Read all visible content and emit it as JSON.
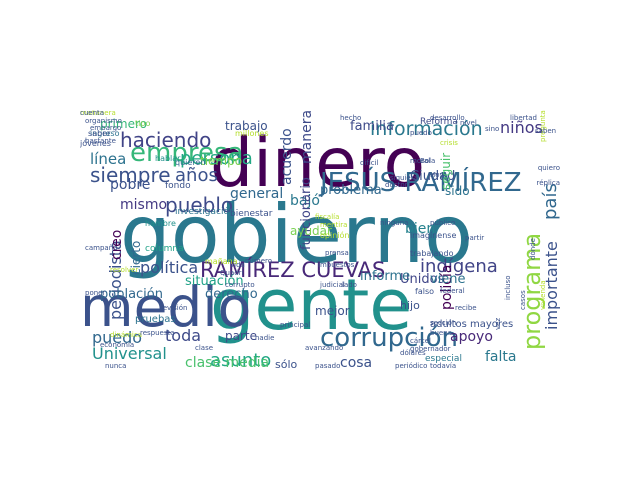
{
  "word_cloud": {
    "words": [
      {
        "text": "gobierno",
        "color": "#2a788e"
      },
      {
        "text": "gente",
        "color": "#21918c"
      },
      {
        "text": "dinero",
        "color": "#440154"
      },
      {
        "text": "medio",
        "color": "#3b528b"
      },
      {
        "text": "corrupción",
        "color": "#31688e"
      },
      {
        "text": "JESÚS RAMÍREZ",
        "color": "#31688e"
      },
      {
        "text": "empresa",
        "color": "#35b779"
      },
      {
        "text": "RAMÍREZ CUEVAS",
        "color": "#482878"
      },
      {
        "text": "información",
        "color": "#2a788e"
      },
      {
        "text": "pueblo",
        "color": "#3e4a89"
      },
      {
        "text": "programa",
        "color": "#90d743"
      },
      {
        "text": "haciendo",
        "color": "#414487"
      },
      {
        "text": "persona",
        "color": "#22a884"
      },
      {
        "text": "indígena",
        "color": "#414487"
      },
      {
        "text": "siempre",
        "color": "#3b528b"
      },
      {
        "text": "años",
        "color": "#3b528b"
      },
      {
        "text": "línea",
        "color": "#2c728e"
      },
      {
        "text": "periodista",
        "color": "#3b528b"
      },
      {
        "text": "política",
        "color": "#3b528b"
      },
      {
        "text": "toda",
        "color": "#3e4a89"
      },
      {
        "text": "asunto",
        "color": "#22a884"
      },
      {
        "text": "puedo",
        "color": "#31688e"
      },
      {
        "text": "Universal",
        "color": "#21918c"
      },
      {
        "text": "policía",
        "color": "#440154"
      },
      {
        "text": "país",
        "color": "#31688e"
      },
      {
        "text": "importante",
        "color": "#3b528b"
      },
      {
        "text": "falta",
        "color": "#2a788e"
      },
      {
        "text": "apoyo",
        "color": "#482878"
      },
      {
        "text": "niños",
        "color": "#443983"
      },
      {
        "text": "bien",
        "color": "#26828e"
      },
      {
        "text": "general",
        "color": "#31688e"
      },
      {
        "text": "bajó",
        "color": "#2a788e"
      },
      {
        "text": "problema",
        "color": "#31688e"
      },
      {
        "text": "Unidos",
        "color": "#404688"
      },
      {
        "text": "viene",
        "color": "#2c728e"
      },
      {
        "text": "situación",
        "color": "#1fa187"
      },
      {
        "text": "población",
        "color": "#31688e"
      },
      {
        "text": "derecho",
        "color": "#31688e"
      },
      {
        "text": "clase media",
        "color": "#4ac16d"
      },
      {
        "text": "cosa",
        "color": "#3b528b"
      },
      {
        "text": "parte",
        "color": "#3e4a89"
      },
      {
        "text": "pobre",
        "color": "#3b528b"
      },
      {
        "text": "mismo",
        "color": "#443983"
      },
      {
        "text": "creo",
        "color": "#440154"
      },
      {
        "text": "cierto",
        "color": "#31688e"
      },
      {
        "text": "manera",
        "color": "#3e4a89"
      },
      {
        "text": "acuerdo",
        "color": "#3b528b"
      },
      {
        "text": "funcionario",
        "color": "#404688"
      },
      {
        "text": "familia",
        "color": "#3e4a89"
      },
      {
        "text": "trabajo",
        "color": "#3b528b"
      },
      {
        "text": "primero",
        "color": "#35b779"
      },
      {
        "text": "tiempo",
        "color": "#7ad151"
      },
      {
        "text": "informe",
        "color": "#2c728e"
      },
      {
        "text": "Ciudad",
        "color": "#3b528b"
      },
      {
        "text": "ayudar",
        "color": "#7ad151"
      },
      {
        "text": "sido",
        "color": "#2c728e"
      },
      {
        "text": "seguir",
        "color": "#4ac16d"
      },
      {
        "text": "mejor",
        "color": "#3b528b"
      },
      {
        "text": "sólo",
        "color": "#3b528b"
      },
      {
        "text": "hijo",
        "color": "#3b528b"
      },
      {
        "text": "adultos mayores",
        "color": "#3b528b"
      },
      {
        "text": "especial",
        "color": "#2a788e"
      },
      {
        "text": "pruebas",
        "color": "#2c728e"
      },
      {
        "text": "Reforma",
        "color": "#3e4a89"
      },
      {
        "text": "fondo",
        "color": "#3b528b"
      },
      {
        "text": "investigación",
        "color": "#2c728e"
      },
      {
        "text": "bienestar",
        "color": "#3b528b"
      },
      {
        "text": "columna",
        "color": "#1fa187"
      },
      {
        "text": "ingreso",
        "color": "#2c728e"
      },
      {
        "text": "tipo",
        "color": "#7ad151"
      },
      {
        "text": "millones",
        "color": "#b5de2b"
      },
      {
        "text": "mañana",
        "color": "#b5de2b"
      },
      {
        "text": "jóvenes",
        "color": "#3b528b"
      },
      {
        "text": "saber",
        "color": "#3b528b"
      },
      {
        "text": "hambre",
        "color": "#21918c"
      },
      {
        "text": "hablar",
        "color": "#21918c"
      },
      {
        "text": "quieren",
        "color": "#31688e"
      },
      {
        "text": "número",
        "color": "#3b528b"
      },
      {
        "text": "prensa",
        "color": "#3b528b"
      },
      {
        "text": "impuestos",
        "color": "#3b528b"
      },
      {
        "text": "opinión",
        "color": "#b5de2b"
      },
      {
        "text": "mentira",
        "color": "#b5de2b"
      },
      {
        "text": "fiscalía",
        "color": "#b5de2b"
      },
      {
        "text": "judicial",
        "color": "#3b528b"
      },
      {
        "text": "lado",
        "color": "#3b528b"
      },
      {
        "text": "falso",
        "color": "#3b528b"
      },
      {
        "text": "trabajando",
        "color": "#3b528b"
      },
      {
        "text": "federal",
        "color": "#3b528b"
      },
      {
        "text": "imagínense",
        "color": "#3b528b"
      },
      {
        "text": "sección",
        "color": "#3b528b"
      },
      {
        "text": "buena",
        "color": "#3b528b"
      },
      {
        "text": "recibe",
        "color": "#3b528b"
      },
      {
        "text": "dólares",
        "color": "#3b528b"
      },
      {
        "text": "pasado",
        "color": "#3b528b"
      },
      {
        "text": "periódico",
        "color": "#3b528b"
      },
      {
        "text": "todavía",
        "color": "#3b528b"
      },
      {
        "text": "avanzando",
        "color": "#3b528b"
      },
      {
        "text": "principal",
        "color": "#3b528b"
      },
      {
        "text": "Quadri",
        "color": "#3b528b"
      },
      {
        "text": "corrupto",
        "color": "#3b528b"
      },
      {
        "text": "vida",
        "color": "#3b528b"
      },
      {
        "text": "campaña",
        "color": "#3b528b"
      },
      {
        "text": "resolver",
        "color": "#b5de2b"
      },
      {
        "text": "poner",
        "color": "#3b528b"
      },
      {
        "text": "nunca",
        "color": "#3b528b"
      },
      {
        "text": "embargo",
        "color": "#3b528b"
      },
      {
        "text": "bastante",
        "color": "#3b528b"
      },
      {
        "text": "organismo",
        "color": "#3b528b"
      },
      {
        "text": "pregunta",
        "color": "#b5de2b"
      },
      {
        "text": "crisis",
        "color": "#b5de2b"
      },
      {
        "text": "Hoy",
        "color": "#3b528b"
      },
      {
        "text": "Bola",
        "color": "#3b528b"
      },
      {
        "text": "doctor",
        "color": "#3b528b"
      },
      {
        "text": "moral",
        "color": "#3b528b"
      },
      {
        "text": "público",
        "color": "#3b528b"
      },
      {
        "text": "partir",
        "color": "#3b528b"
      },
      {
        "text": "siquiera",
        "color": "#3b528b"
      },
      {
        "text": "ninguna",
        "color": "#3b528b"
      },
      {
        "text": "difícil",
        "color": "#3b528b"
      },
      {
        "text": "nivel",
        "color": "#3b528b"
      },
      {
        "text": "libertad",
        "color": "#3b528b"
      },
      {
        "text": "saben",
        "color": "#3b528b"
      },
      {
        "text": "quiero",
        "color": "#3b528b"
      },
      {
        "text": "réplica",
        "color": "#3b528b"
      },
      {
        "text": "desarrollo",
        "color": "#3b528b"
      },
      {
        "text": "hecho",
        "color": "#3b528b"
      },
      {
        "text": "sino",
        "color": "#3b528b"
      },
      {
        "text": "puedo",
        "color": "#3b528b"
      },
      {
        "text": "revisión",
        "color": "#3b528b"
      },
      {
        "text": "nadie",
        "color": "#3b528b"
      },
      {
        "text": "vez",
        "color": "#3b528b"
      },
      {
        "text": "cárcel",
        "color": "#3b528b"
      },
      {
        "text": "gobernador",
        "color": "#3b528b"
      },
      {
        "text": "casos",
        "color": "#3b528b"
      },
      {
        "text": "incluso",
        "color": "#3b528b"
      },
      {
        "text": "vivienda",
        "color": "#b5de2b"
      },
      {
        "text": "dinámica",
        "color": "#b5de2b"
      },
      {
        "text": "respuesta",
        "color": "#3b528b"
      },
      {
        "text": "economía",
        "color": "#3b528b"
      },
      {
        "text": "clase",
        "color": "#3b528b"
      },
      {
        "text": "dónde",
        "color": "#3b528b"
      },
      {
        "text": "mañanera",
        "color": "#b5de2b"
      },
      {
        "text": "cuenta",
        "color": "#3b528b"
      }
    ]
  }
}
